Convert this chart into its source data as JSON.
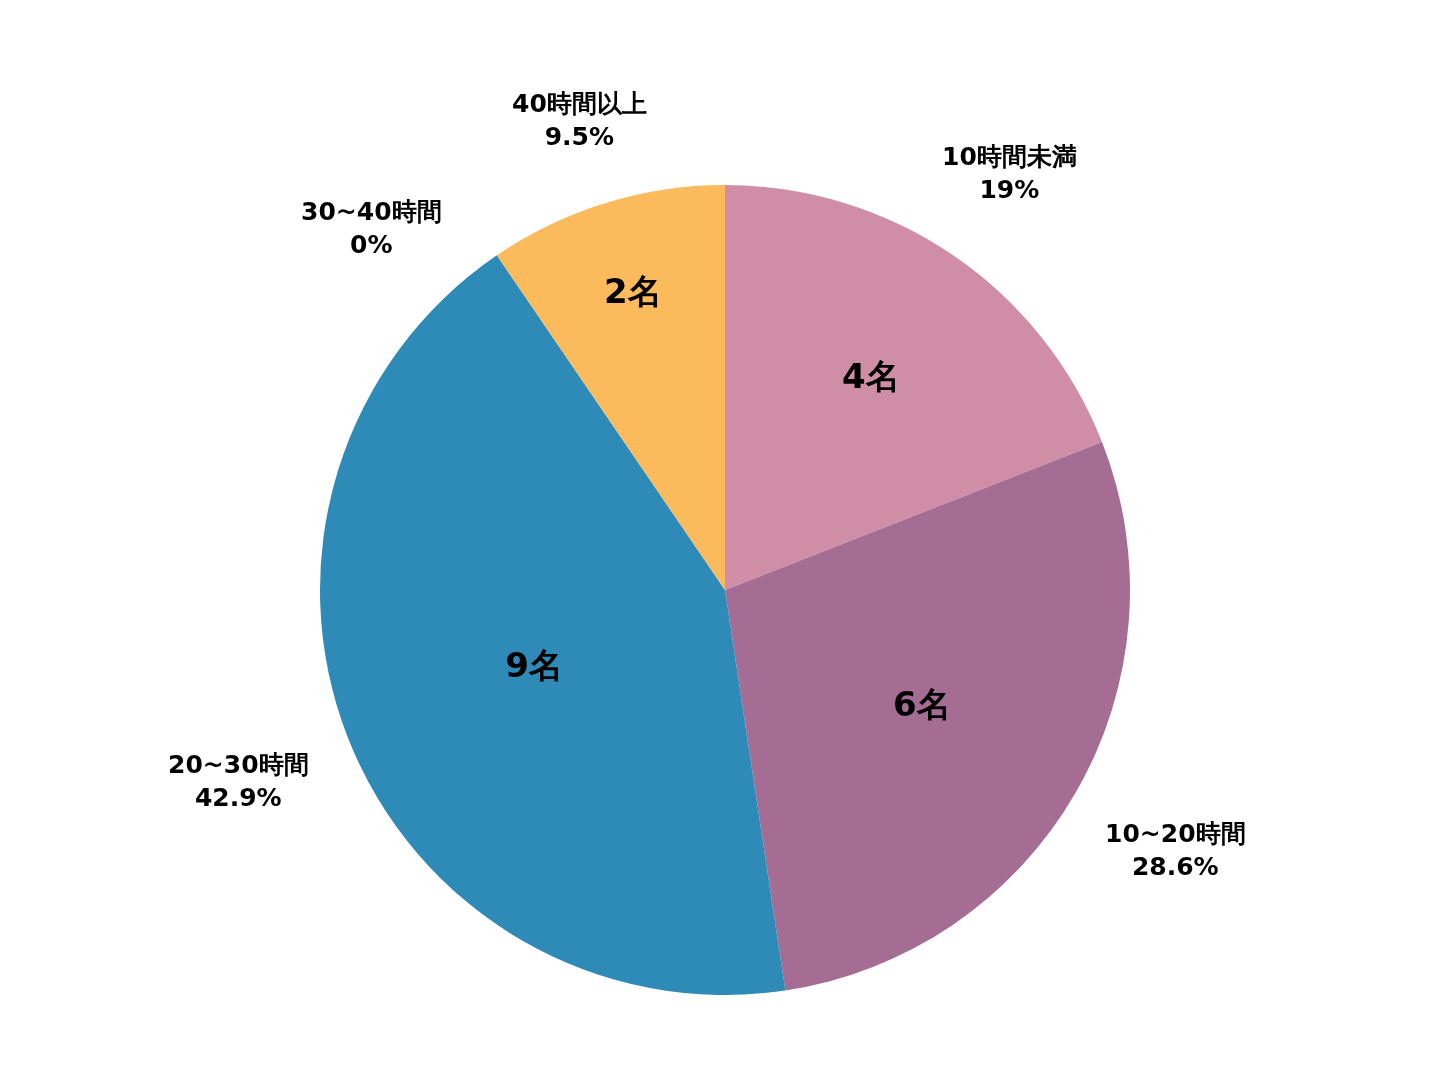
{
  "chart_data": {
    "type": "pie",
    "categories": [
      "10時間未満",
      "10~20時間",
      "20~30時間",
      "30~40時間",
      "40時間以上"
    ],
    "values": [
      4,
      6,
      9,
      0,
      2
    ],
    "colors": [
      "#d08ea6",
      "#a56c94",
      "#2e8bb8",
      "#8e6fa0",
      "#fbbb5c"
    ],
    "value_labels": [
      "4名",
      "6名",
      "9名",
      null,
      "2名"
    ],
    "annotations": [
      "19%",
      "28.6%",
      "42.9%",
      "0%",
      "9.5%"
    ],
    "legend": false
  }
}
